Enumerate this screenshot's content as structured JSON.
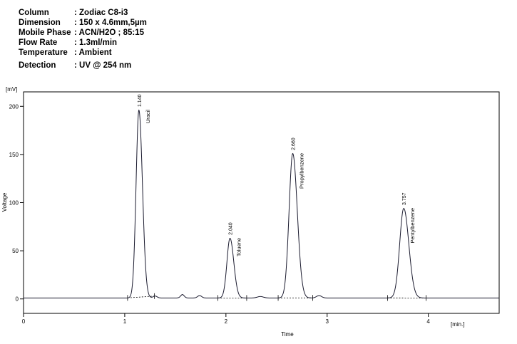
{
  "method": {
    "rows": [
      {
        "label": "Column",
        "value": ": Zodiac C8-i3"
      },
      {
        "label": "Dimension",
        "value": ": 150 x 4.6mm,5µm"
      },
      {
        "label": "Mobile Phase",
        "value": ": ACN/H2O ; 85:15"
      },
      {
        "label": "Flow Rate",
        "value": ": 1.3ml/min"
      },
      {
        "label": "Temperature",
        "value": ": Ambient"
      },
      {
        "label": "Detection",
        "value": ": UV @ 254 nm"
      }
    ]
  },
  "chart_data": {
    "type": "line",
    "title": "",
    "xlabel": "Time",
    "ylabel": "Voltage",
    "y_unit": "[mV]",
    "x_unit": "[min.]",
    "xlim": [
      0,
      4.7
    ],
    "ylim": [
      -15,
      215
    ],
    "x_ticks": [
      0,
      1,
      2,
      3,
      4
    ],
    "x_tick_labels": [
      "0",
      "1",
      "2",
      "3",
      "4"
    ],
    "y_ticks": [
      0,
      50,
      100,
      150,
      200
    ],
    "y_tick_labels": [
      "0",
      "50",
      "100",
      "150",
      "200"
    ],
    "grid": false,
    "legend": "none",
    "baseline": 1,
    "line_color": "#1a1a2e",
    "peaks": [
      {
        "name": "Uracil",
        "retention_label": "1.140",
        "time": 1.14,
        "height": 195,
        "width": 0.028
      },
      {
        "name": "Toluene",
        "retention_label": "2.040",
        "time": 2.04,
        "height": 62,
        "width": 0.03
      },
      {
        "name": "Propylbenzene",
        "retention_label": "2.660",
        "time": 2.66,
        "height": 150,
        "width": 0.036
      },
      {
        "name": "Pentylbenzene",
        "retention_label": "3.757",
        "time": 3.757,
        "height": 93,
        "width": 0.04
      }
    ]
  }
}
